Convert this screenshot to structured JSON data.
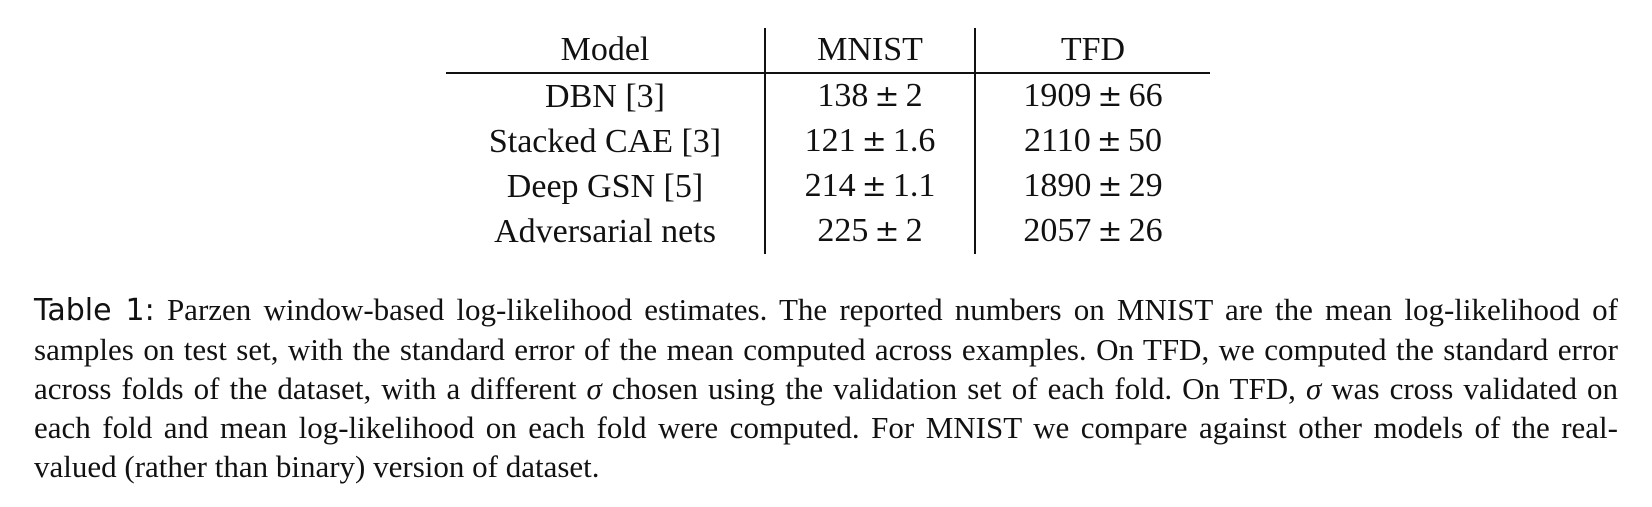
{
  "table": {
    "headers": [
      "Model",
      "MNIST",
      "TFD"
    ],
    "rows": [
      {
        "model": "DBN [3]",
        "mnist_mean": "138",
        "mnist_err": "2",
        "mnist_bold": false,
        "tfd_mean": "1909",
        "tfd_err": "66",
        "tfd_bold": false
      },
      {
        "model": "Stacked CAE [3]",
        "mnist_mean": "121",
        "mnist_err": "1.6",
        "mnist_bold": false,
        "tfd_mean": "2110",
        "tfd_err": "50",
        "tfd_bold": true
      },
      {
        "model": "Deep GSN [5]",
        "mnist_mean": "214",
        "mnist_err": "1.1",
        "mnist_bold": false,
        "tfd_mean": "1890",
        "tfd_err": "29",
        "tfd_bold": false
      },
      {
        "model": "Adversarial nets",
        "mnist_mean": "225",
        "mnist_err": "2",
        "mnist_bold": true,
        "tfd_mean": "2057",
        "tfd_err": "26",
        "tfd_bold": true
      }
    ],
    "pm_symbol": "±"
  },
  "caption": {
    "label": "Table 1:",
    "part1": "Parzen window-based log-likelihood estimates. The reported numbers on MNIST are the mean log-likelihood of samples on test set, with the standard error of the mean computed across examples. On TFD, we computed the standard error across folds of the dataset, with a different",
    "sigma": "σ",
    "part2": "chosen using the validation set of each fold. On TFD,",
    "part3": "was cross validated on each fold and mean log-likelihood on each fold were computed. For MNIST we compare against other models of the real-valued (rather than binary) version of dataset."
  }
}
